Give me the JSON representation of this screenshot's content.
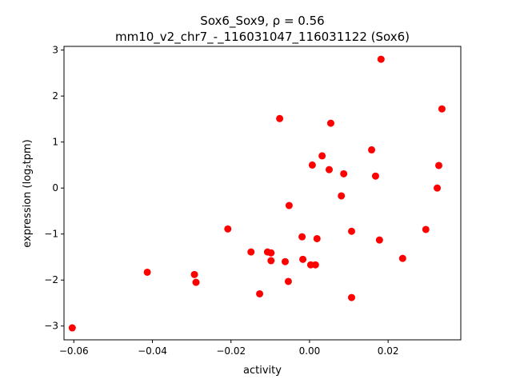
{
  "chart_data": {
    "type": "scatter",
    "title_line1": "Sox6_Sox9, ρ = 0.56",
    "title_line2": "mm10_v2_chr7_-_116031047_116031122 (Sox6)",
    "xlabel": "activity",
    "ylabel": "expression (log₂tpm)",
    "xlim": [
      -0.0625,
      0.0385
    ],
    "ylim": [
      -3.3,
      3.08
    ],
    "xticks": [
      -0.06,
      -0.04,
      -0.02,
      0.0,
      0.02
    ],
    "xtick_labels": [
      "−0.06",
      "−0.04",
      "−0.02",
      "0.00",
      "0.02"
    ],
    "yticks": [
      3,
      2,
      1,
      0,
      -1,
      -2,
      -3
    ],
    "ytick_labels": [
      "3",
      "2",
      "1",
      "0",
      "−1",
      "−2",
      "−3"
    ],
    "grid": false,
    "marker_color": "#ff0000",
    "points": [
      [
        -0.0604,
        -3.04
      ],
      [
        -0.0413,
        -1.83
      ],
      [
        -0.0293,
        -1.88
      ],
      [
        -0.0289,
        -2.05
      ],
      [
        -0.0208,
        -0.89
      ],
      [
        -0.0149,
        -1.39
      ],
      [
        -0.0127,
        -2.3
      ],
      [
        -0.0107,
        -1.39
      ],
      [
        -0.0098,
        -1.41
      ],
      [
        -0.0098,
        -1.58
      ],
      [
        -0.0076,
        1.51
      ],
      [
        -0.0062,
        -1.6
      ],
      [
        -0.0054,
        -2.03
      ],
      [
        -0.0052,
        -0.38
      ],
      [
        -0.0019,
        -1.06
      ],
      [
        -0.0017,
        -1.55
      ],
      [
        0.0003,
        -1.67
      ],
      [
        0.0007,
        0.5
      ],
      [
        0.0015,
        -1.67
      ],
      [
        0.0019,
        -1.1
      ],
      [
        0.0032,
        0.7
      ],
      [
        0.005,
        0.4
      ],
      [
        0.0054,
        1.41
      ],
      [
        0.0081,
        -0.17
      ],
      [
        0.0087,
        0.31
      ],
      [
        0.0107,
        -0.94
      ],
      [
        0.0107,
        -2.38
      ],
      [
        0.0158,
        0.83
      ],
      [
        0.0168,
        0.26
      ],
      [
        0.0178,
        -1.13
      ],
      [
        0.0182,
        2.8
      ],
      [
        0.0237,
        -1.53
      ],
      [
        0.0296,
        -0.9
      ],
      [
        0.0325,
        0.0
      ],
      [
        0.0329,
        0.49
      ],
      [
        0.0337,
        1.72
      ]
    ]
  }
}
